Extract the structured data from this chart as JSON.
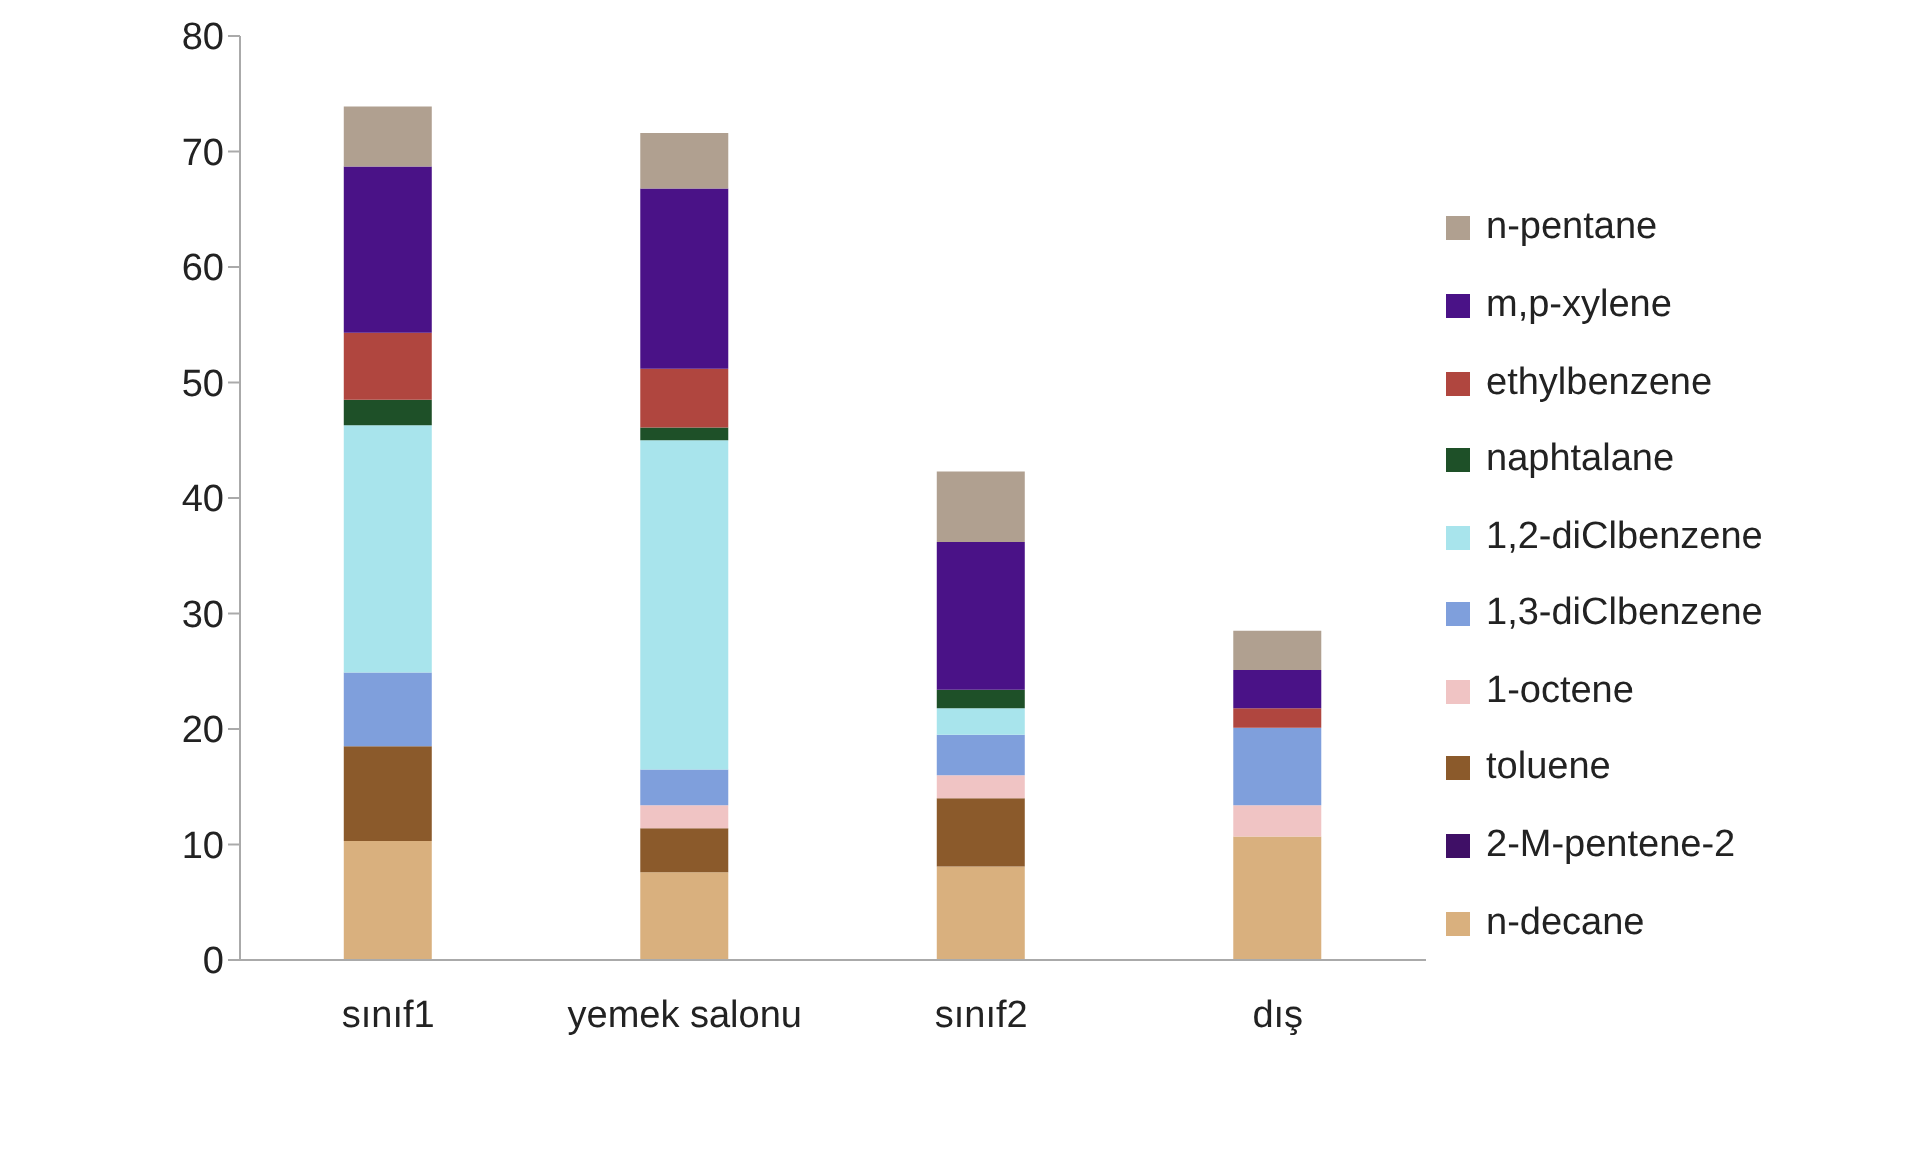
{
  "chart_data": {
    "type": "bar",
    "stacked": true,
    "categories": [
      "sınıf1",
      "yemek salonu",
      "sınıf2",
      "dış"
    ],
    "series": [
      {
        "name": "n-decane",
        "color": "#d9b07e",
        "values": [
          10.3,
          7.6,
          8.1,
          10.7
        ]
      },
      {
        "name": "2-M-pentene-2",
        "color": "#3f0f66",
        "values": [
          0,
          0,
          0,
          0
        ]
      },
      {
        "name": "toluene",
        "color": "#8b5a2b",
        "values": [
          8.2,
          3.8,
          5.9,
          0
        ]
      },
      {
        "name": "1-octene",
        "color": "#f0c4c4",
        "values": [
          0,
          2.0,
          2.0,
          2.7
        ]
      },
      {
        "name": "1,3-diClbenzene",
        "color": "#7f9fdc",
        "values": [
          6.4,
          3.1,
          3.5,
          6.7
        ]
      },
      {
        "name": "1,2-diClbenzene",
        "color": "#a8e4ec",
        "values": [
          21.4,
          28.5,
          2.3,
          0
        ]
      },
      {
        "name": "naphtalane",
        "color": "#1e5028",
        "values": [
          2.2,
          1.1,
          1.6,
          0
        ]
      },
      {
        "name": "ethylbenzene",
        "color": "#b0463f",
        "values": [
          5.8,
          5.1,
          0,
          1.7
        ]
      },
      {
        "name": "m,p-xylene",
        "color": "#4a1287",
        "values": [
          14.4,
          15.6,
          12.8,
          3.3
        ]
      },
      {
        "name": "n-pentane",
        "color": "#b0a090",
        "values": [
          5.2,
          4.8,
          6.1,
          3.4
        ]
      }
    ],
    "ylim": [
      0,
      80
    ],
    "yticks": [
      0,
      10,
      20,
      30,
      40,
      50,
      60,
      70,
      80
    ],
    "grid": false,
    "legend": "right"
  }
}
